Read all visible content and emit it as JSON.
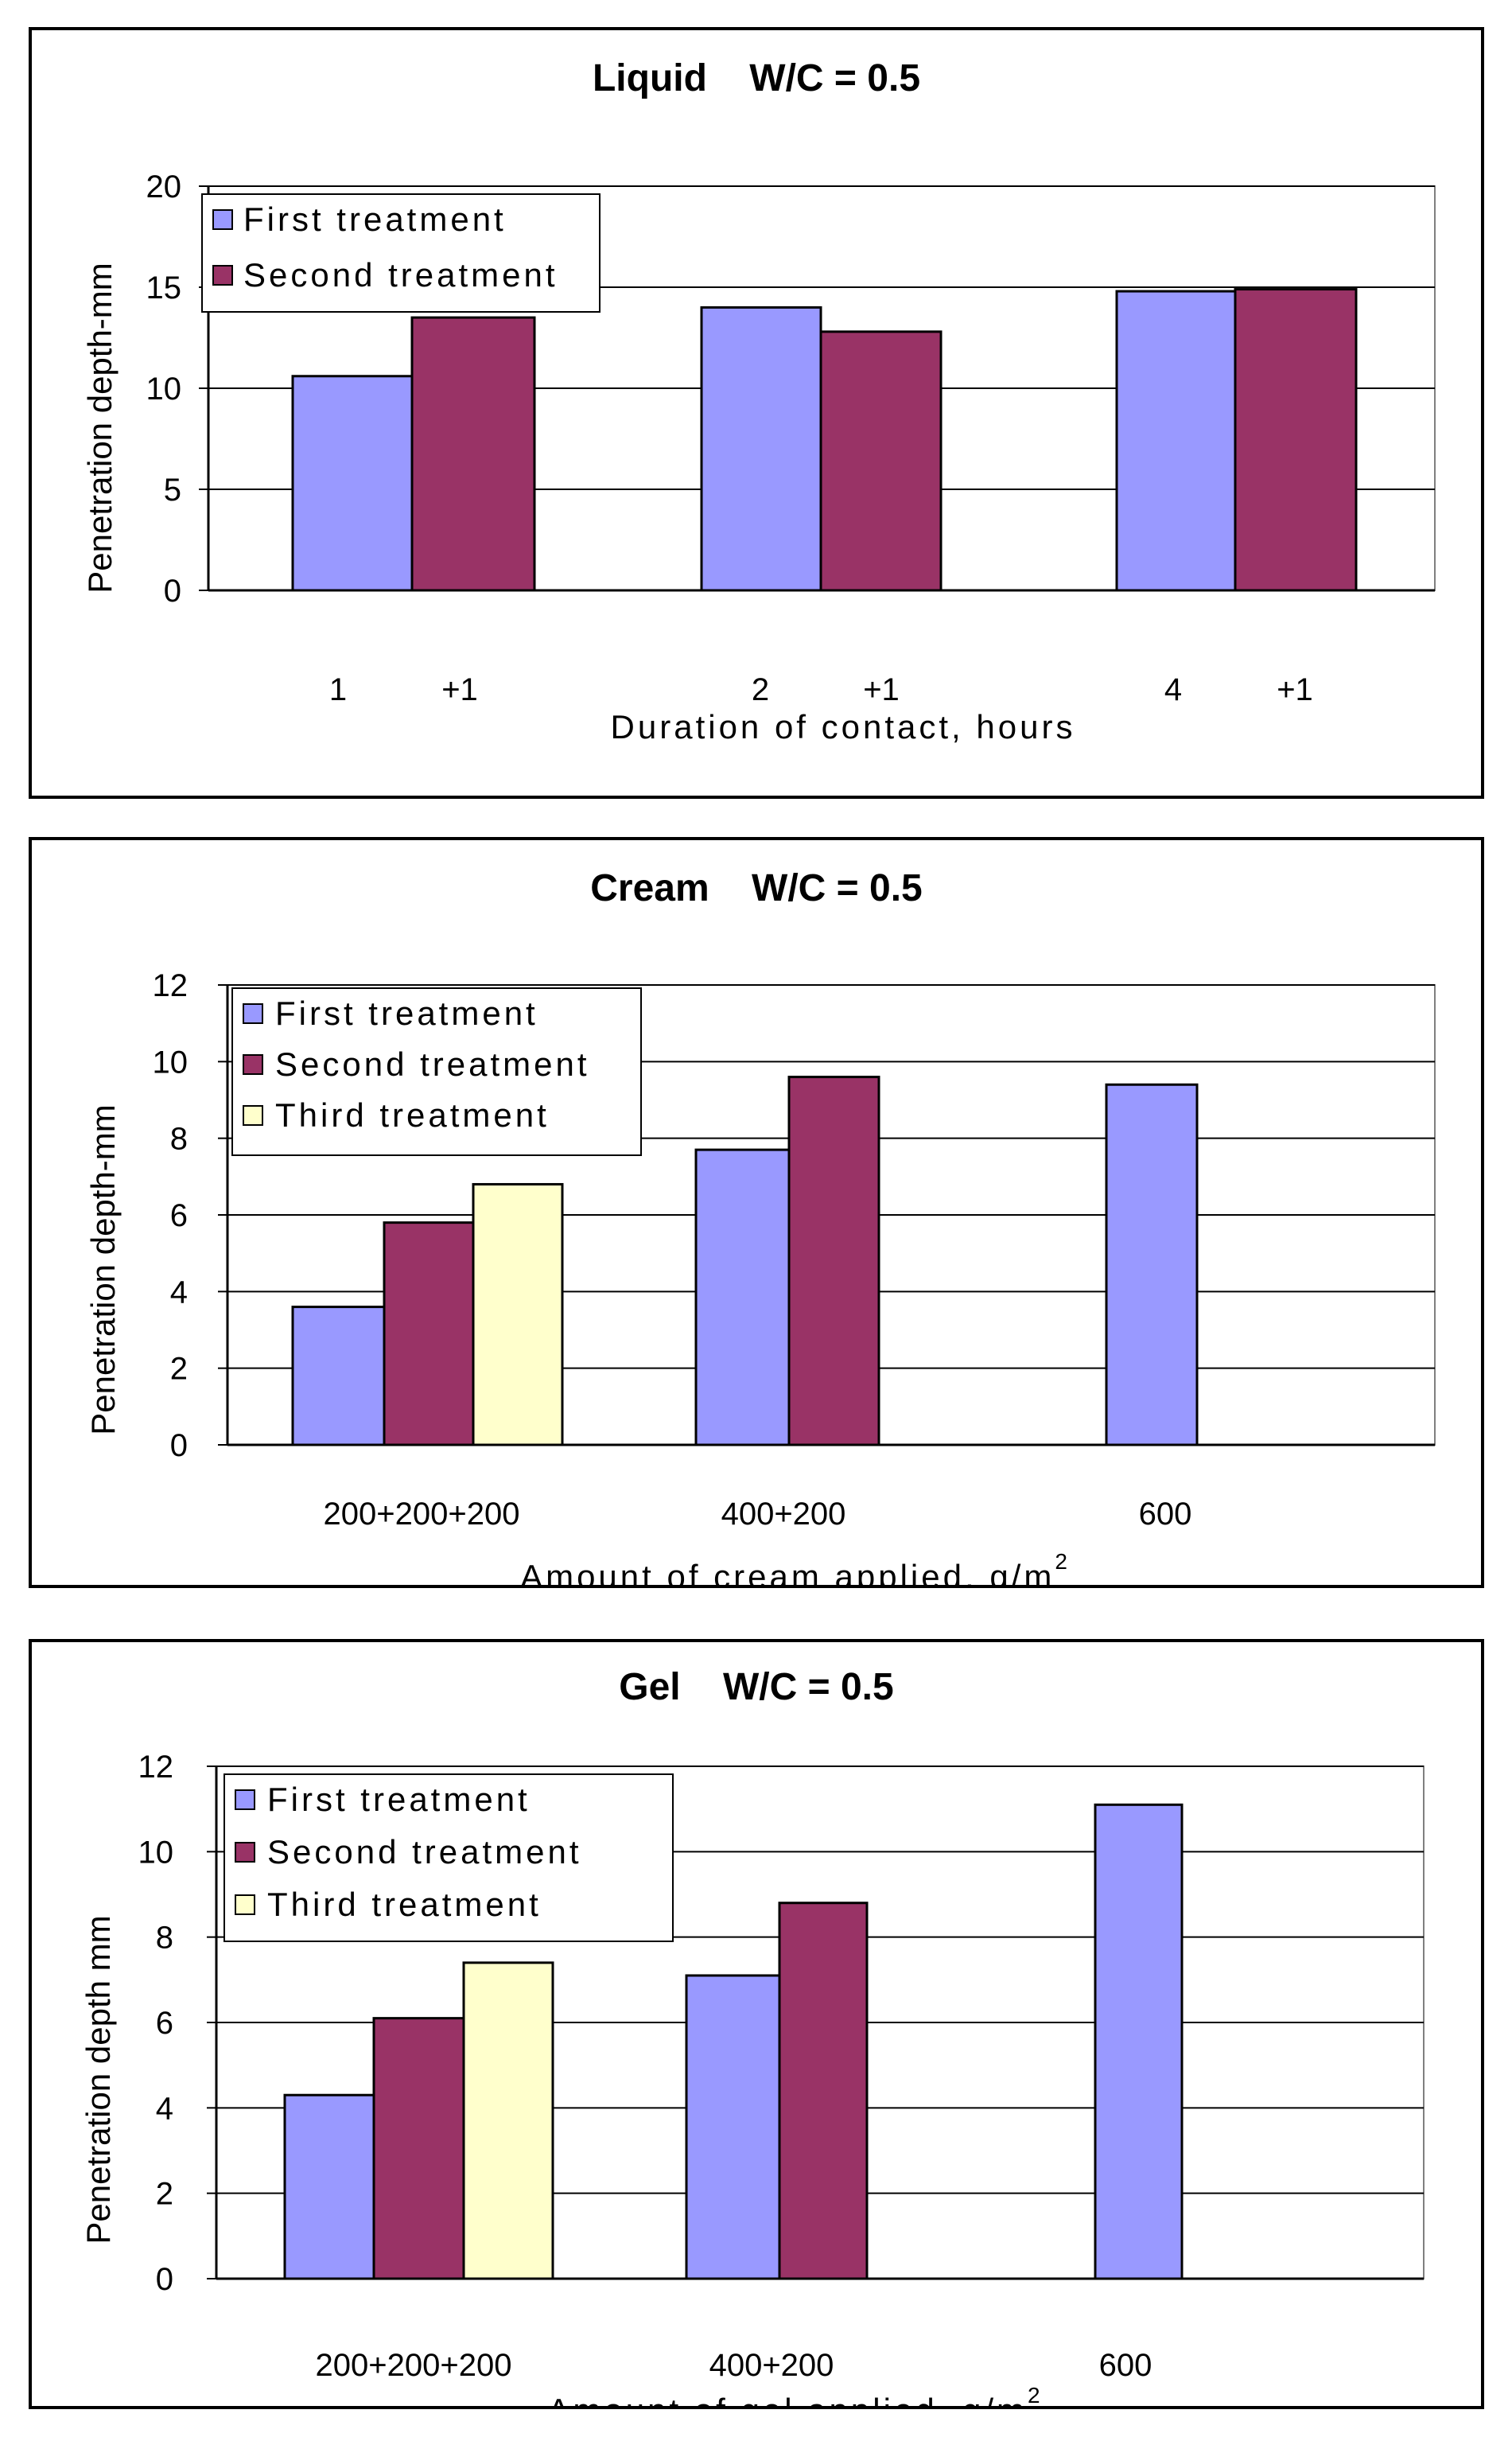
{
  "chart_data": [
    {
      "type": "bar",
      "title": "Liquid    W/C = 0.5",
      "xlabel": "Duration of contact, hours",
      "ylabel": "Penetration depth-mm",
      "ylim": [
        0,
        20
      ],
      "yticks": [
        "0",
        "5",
        "10",
        "15",
        "20"
      ],
      "grid": true,
      "legend_position": "top-left",
      "categories": [
        "1",
        "2",
        "4"
      ],
      "category_suffix": "+1",
      "series": [
        {
          "name": "First treatment",
          "color": "#9999ff",
          "values": [
            10.6,
            14.0,
            14.8
          ]
        },
        {
          "name": "Second treatment",
          "color": "#993366",
          "values": [
            13.5,
            12.8,
            14.9
          ]
        }
      ]
    },
    {
      "type": "bar",
      "title": "Cream    W/C = 0.5",
      "xlabel": "Amount of cream applied, g/m",
      "xlabel_superscript": "2",
      "ylabel": "Penetration depth-mm",
      "ylim": [
        0,
        12
      ],
      "yticks": [
        "0",
        "2",
        "4",
        "6",
        "8",
        "10",
        "12"
      ],
      "grid": true,
      "legend_position": "top-left",
      "categories": [
        "200+200+200",
        "400+200",
        "600"
      ],
      "series": [
        {
          "name": "First treatment",
          "color": "#9999ff",
          "values": [
            3.6,
            7.7,
            9.4
          ]
        },
        {
          "name": "Second treatment",
          "color": "#993366",
          "values": [
            5.8,
            9.6,
            null
          ]
        },
        {
          "name": "Third treatment",
          "color": "#ffffcc",
          "values": [
            6.8,
            null,
            null
          ]
        }
      ]
    },
    {
      "type": "bar",
      "title": "Gel    W/C = 0.5",
      "xlabel": "Amount of gel applied, g/m",
      "xlabel_superscript": "2",
      "ylabel": "Penetration depth mm",
      "ylim": [
        0,
        12
      ],
      "yticks": [
        "0",
        "2",
        "4",
        "6",
        "8",
        "10",
        "12"
      ],
      "grid": true,
      "legend_position": "top-left",
      "categories": [
        "200+200+200",
        "400+200",
        "600"
      ],
      "series": [
        {
          "name": "First treatment",
          "color": "#9999ff",
          "values": [
            4.3,
            7.1,
            11.1
          ]
        },
        {
          "name": "Second treatment",
          "color": "#993366",
          "values": [
            6.1,
            8.8,
            null
          ]
        },
        {
          "name": "Third treatment",
          "color": "#ffffcc",
          "values": [
            7.4,
            null,
            null
          ]
        }
      ]
    }
  ]
}
